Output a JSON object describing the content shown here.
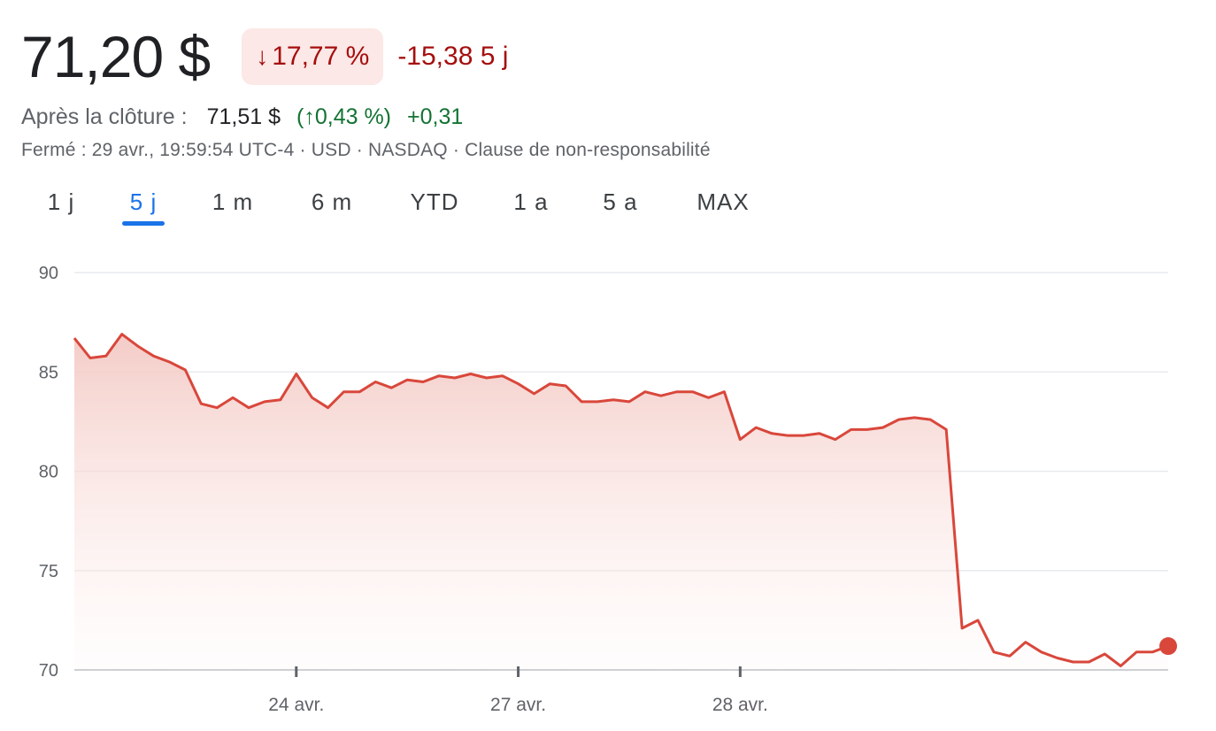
{
  "header": {
    "price": "71,20 $",
    "change_pct": "17,77 %",
    "change_pct_arrow": "↓",
    "change_abs": "-15,38 5 j"
  },
  "after_hours": {
    "label": "Après la clôture :",
    "price": "71,51 $",
    "pct": "(↑0,43 %)",
    "abs": "+0,31"
  },
  "meta": "Fermé : 29 avr., 19:59:54 UTC-4 · USD · NASDAQ · Clause de non-responsabilité",
  "tabs": [
    {
      "label": "1 j"
    },
    {
      "label": "5 j",
      "active": true
    },
    {
      "label": "1 m"
    },
    {
      "label": "6 m"
    },
    {
      "label": "YTD"
    },
    {
      "label": "1 a"
    },
    {
      "label": "5 a"
    },
    {
      "label": "MAX"
    }
  ],
  "colors": {
    "line": "#d9473b",
    "fill_top": "#f3c9c4",
    "active_tab": "#1a73e8",
    "negative": "#a50e0e",
    "positive": "#137333"
  },
  "chart_data": {
    "type": "area",
    "ylim": [
      70,
      90
    ],
    "yticks": [
      "90",
      "85",
      "80",
      "75",
      "70"
    ],
    "ytick_values": [
      90,
      85,
      80,
      75,
      70
    ],
    "xtick_labels": [
      "24 avr.",
      "27 avr.",
      "28 avr."
    ],
    "xtick_index": [
      14,
      28,
      42
    ],
    "grid": true,
    "series": [
      {
        "values": [
          86.7,
          85.7,
          85.8,
          86.9,
          86.3,
          85.8,
          85.5,
          85.1,
          83.4,
          83.2,
          83.7,
          83.2,
          83.5,
          83.6,
          84.9,
          83.7,
          83.2,
          84.0,
          84.0,
          84.5,
          84.2,
          84.6,
          84.5,
          84.8,
          84.7,
          84.9,
          84.7,
          84.8,
          84.4,
          83.9,
          84.4,
          84.3,
          83.5,
          83.5,
          83.6,
          83.5,
          84.0,
          83.8,
          84.0,
          84.0,
          83.7,
          84.0,
          81.6,
          82.2,
          81.9,
          81.8,
          81.8,
          81.9,
          81.6,
          82.1,
          82.1,
          82.2,
          82.6,
          82.7,
          82.6,
          82.1,
          72.1,
          72.5,
          70.9,
          70.7,
          71.4,
          70.9,
          70.6,
          70.4,
          70.4,
          70.8,
          70.2,
          70.9,
          70.9,
          71.2
        ]
      }
    ]
  }
}
